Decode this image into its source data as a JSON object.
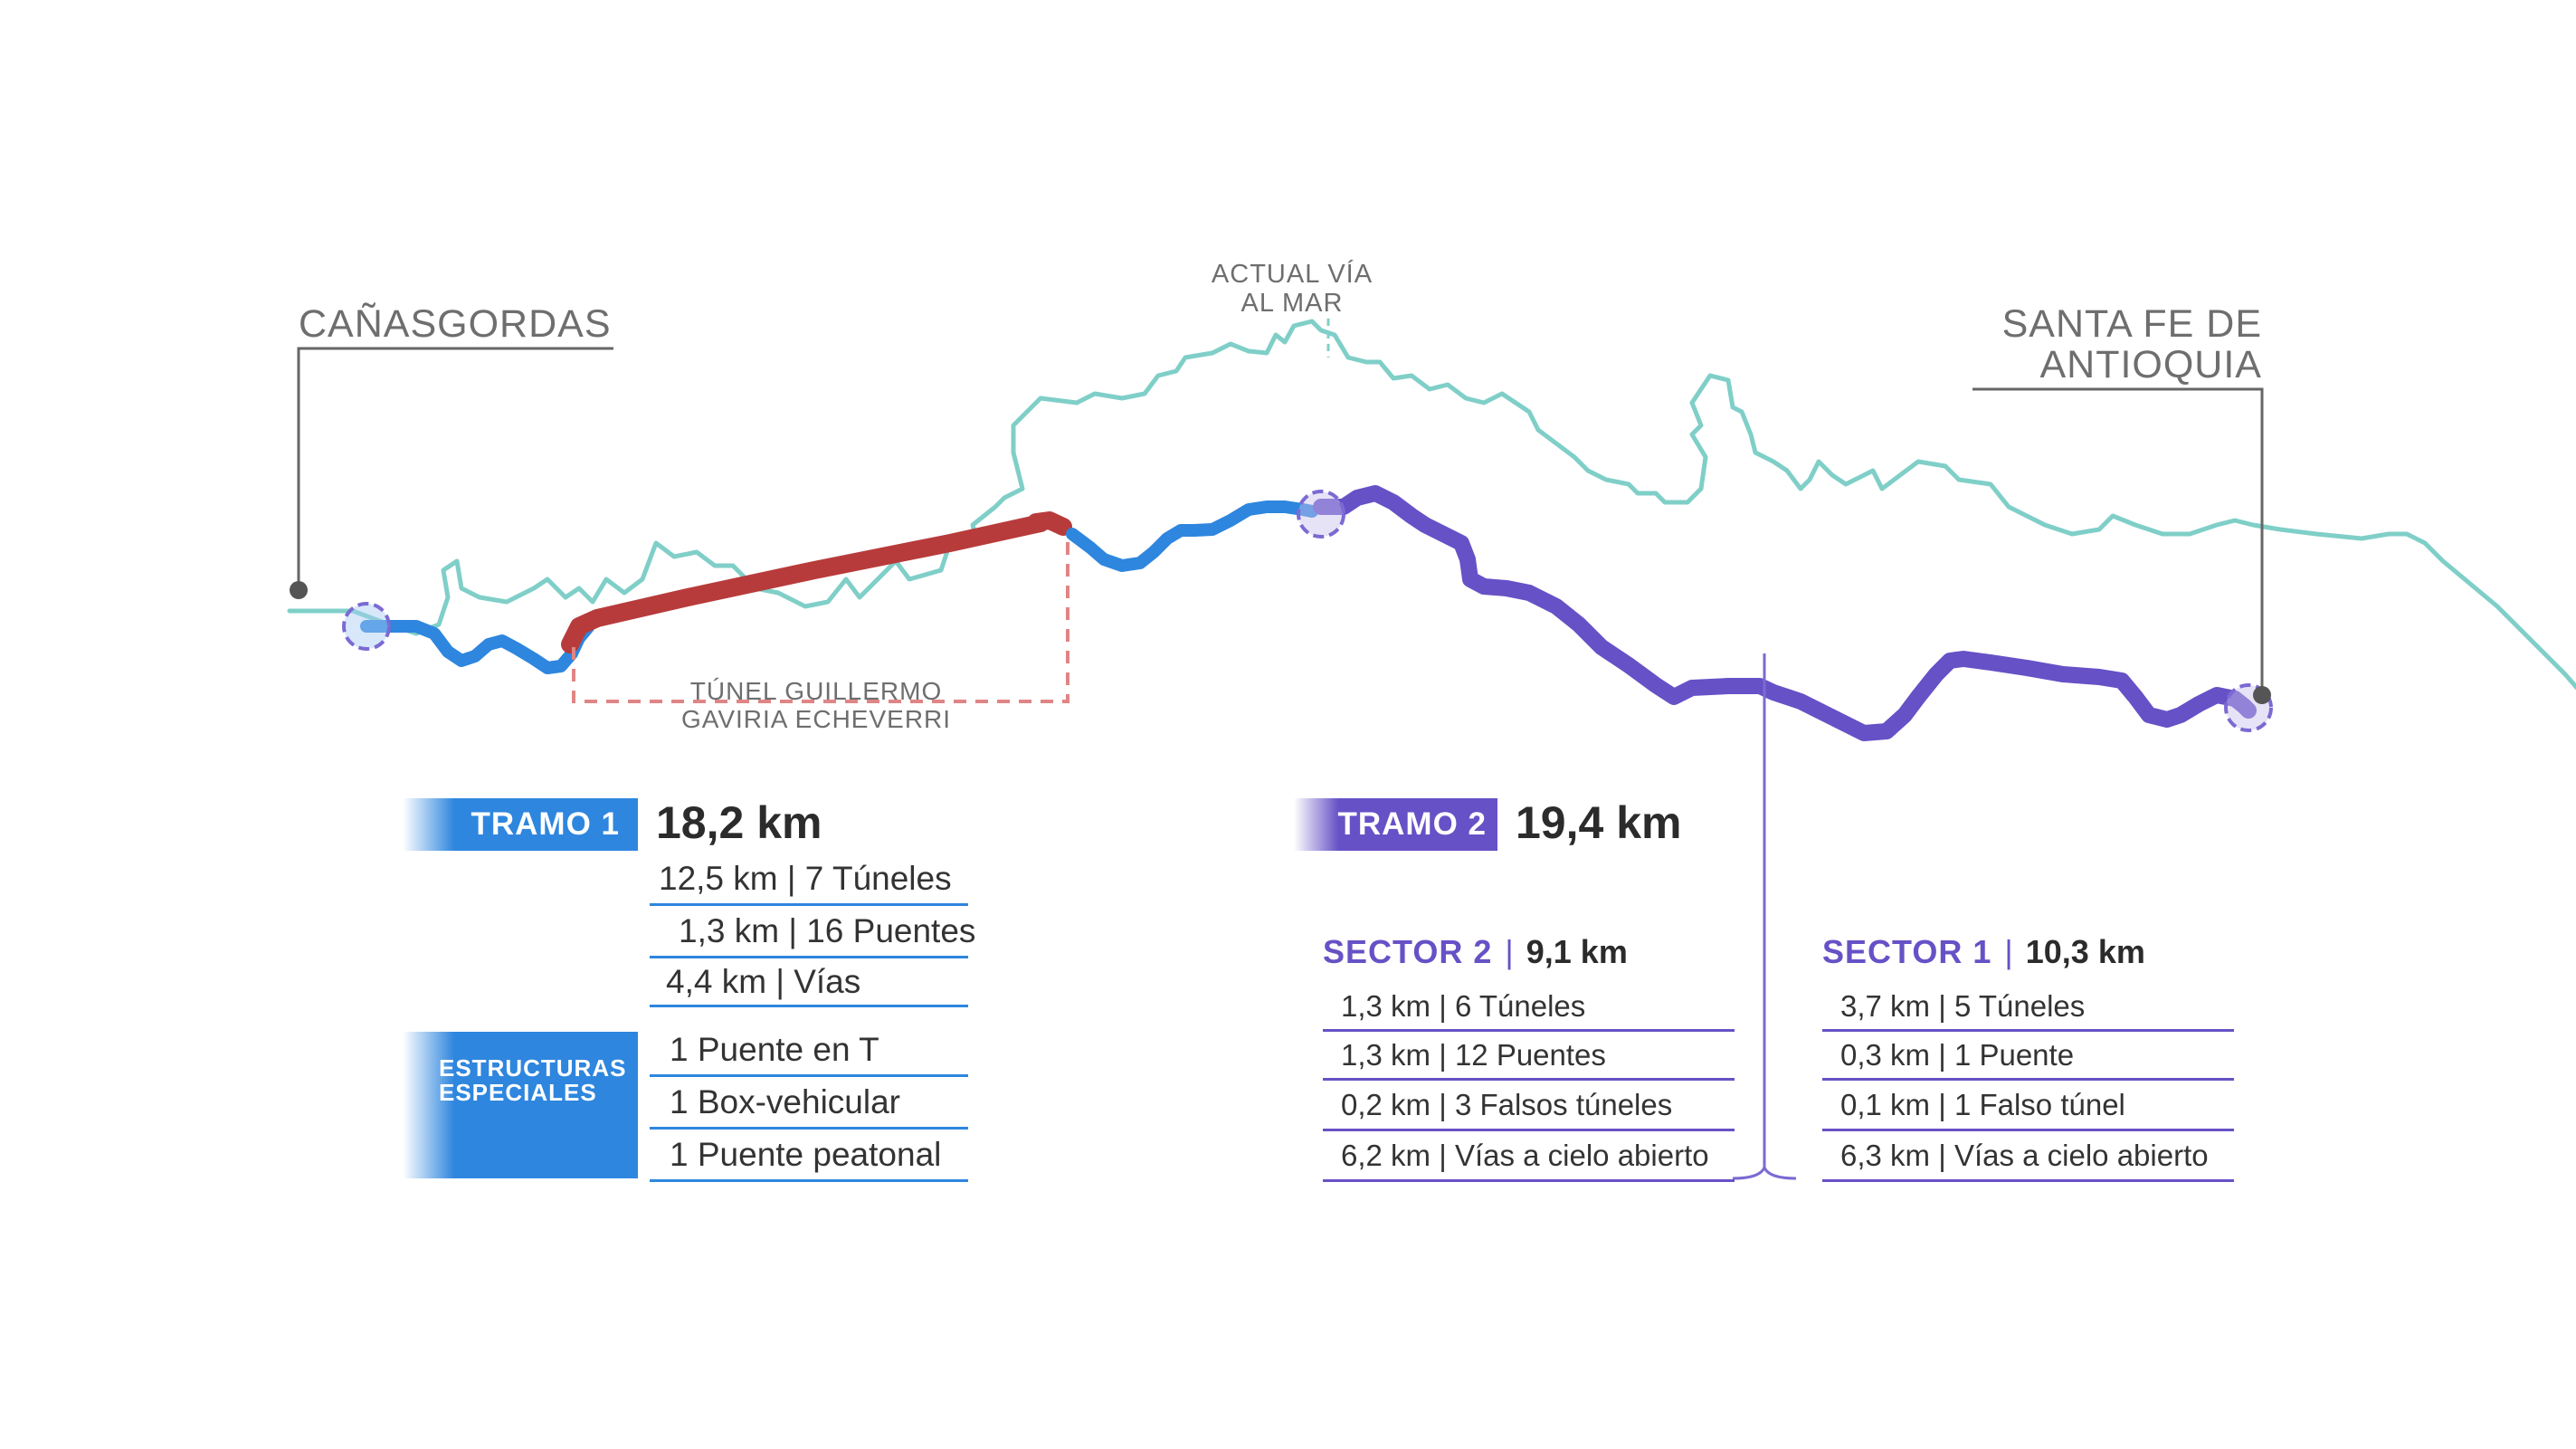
{
  "labels": {
    "start_town": "CAÑASGORDAS",
    "end_town_line1": "SANTA FE DE",
    "end_town_line2": "ANTIOQUIA",
    "current_road_line1": "ACTUAL VÍA",
    "current_road_line2": "AL MAR",
    "tunnel_line1": "TÚNEL GUILLERMO",
    "tunnel_line2": "GAVIRIA ECHEVERRI"
  },
  "colors": {
    "tramo1_blue": "#2e86de",
    "tunnel_red": "#b83b3b",
    "tramo2_purple": "#6751c6",
    "current_road_teal": "#7fcfc8",
    "leader_gray": "#666666"
  },
  "tramo1": {
    "label": "TRAMO 1",
    "length": "18,2 km",
    "rows": [
      "12,5 km | 7 Túneles",
      "1,3 km | 16 Puentes",
      "4,4 km | Vías"
    ],
    "special_label_line1": "ESTRUCTURAS",
    "special_label_line2": "ESPECIALES",
    "special_rows": [
      "1 Puente en T",
      "1 Box-vehicular",
      "1 Puente peatonal"
    ]
  },
  "tramo2": {
    "label": "TRAMO 2",
    "length": "19,4 km",
    "sector2": {
      "name": "SECTOR 2",
      "length": "9,1 km",
      "rows": [
        "1,3 km | 6 Túneles",
        "1,3 km | 12 Puentes",
        "0,2 km | 3 Falsos túneles",
        "6,2 km | Vías a cielo abierto"
      ]
    },
    "sector1": {
      "name": "SECTOR 1",
      "length": "10,3 km",
      "rows": [
        "3,7 km | 5 Túneles",
        "0,3 km | 1 Puente",
        "0,1 km | 1 Falso túnel",
        "6,3 km | Vías a cielo abierto"
      ]
    }
  }
}
